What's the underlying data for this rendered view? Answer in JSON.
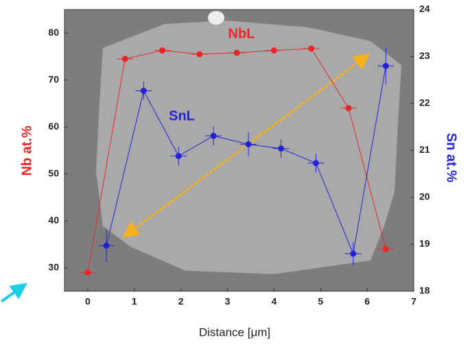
{
  "chart_data": {
    "type": "line",
    "x_label": "Distance [μm]",
    "y_label": "Nb at.%",
    "y2_label": "Sn at.%",
    "xlim": [
      -0.5,
      7
    ],
    "xticks": [
      0,
      1,
      2,
      3,
      4,
      5,
      6,
      7
    ],
    "ylim": [
      25,
      85
    ],
    "yticks": [
      30,
      40,
      50,
      60,
      70,
      80
    ],
    "y2lim": [
      18,
      24
    ],
    "y2ticks": [
      18,
      19,
      20,
      21,
      22,
      23,
      24
    ],
    "annotations": [
      {
        "text": "NbL",
        "color": "#e8262a"
      },
      {
        "text": "SnL",
        "color": "#2323d6"
      }
    ],
    "series": [
      {
        "name": "NbL",
        "color": "#e8262a",
        "x": [
          0,
          0.8,
          1.6,
          2.4,
          3.2,
          4.0,
          4.8,
          5.6,
          6.4
        ],
        "values": [
          29,
          74.5,
          76.3,
          75.5,
          75.8,
          76.3,
          76.7,
          64,
          34
        ]
      },
      {
        "name": "SnL",
        "color": "#2323d6",
        "axis": "y2",
        "x": [
          0.4,
          1.2,
          1.95,
          2.7,
          3.45,
          4.15,
          4.9,
          5.7,
          6.4
        ],
        "values": [
          18.97,
          22.27,
          20.88,
          21.31,
          21.13,
          21.04,
          20.73,
          18.8,
          22.8
        ],
        "yerr": [
          0.35,
          0.2,
          0.2,
          0.2,
          0.25,
          0.2,
          0.2,
          0.25,
          0.4
        ]
      }
    ]
  }
}
